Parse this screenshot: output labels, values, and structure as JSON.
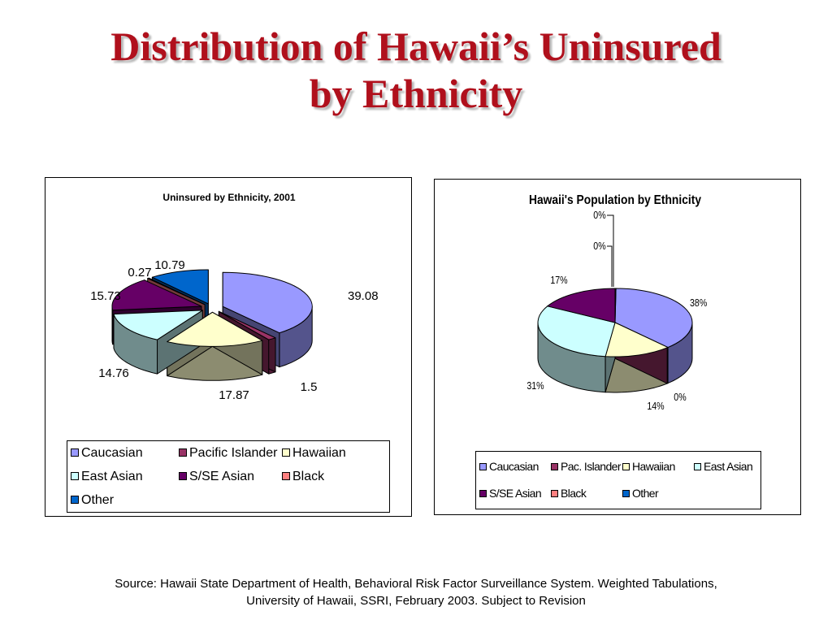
{
  "slide": {
    "title_line1": "Distribution of Hawaii’s Uninsured",
    "title_line2": "by Ethnicity",
    "source_line1": "Source: Hawaii State Department of Health, Behavioral Risk Factor Surveillance System.  Weighted Tabulations,",
    "source_line2": "University of Hawaii, SSRI, February 2003.  Subject to Revision"
  },
  "chart_data": [
    {
      "type": "pie",
      "style": "3d-exploded",
      "title": "Uninsured by Ethnicity, 2001",
      "legend_position": "bottom",
      "categories": [
        "Caucasian",
        "Pacific Islander",
        "Hawaiian",
        "East Asian",
        "S/SE Asian",
        "Black",
        "Other"
      ],
      "values": [
        39.08,
        1.5,
        17.87,
        14.76,
        15.73,
        0.27,
        10.79
      ],
      "data_labels": [
        "39.08",
        "1.5",
        "17.87",
        "14.76",
        "15.73",
        "0.27",
        "10.79"
      ],
      "colors": [
        "#9999ff",
        "#993366",
        "#ffffcc",
        "#ccffff",
        "#660066",
        "#ff8080",
        "#0066cc"
      ]
    },
    {
      "type": "pie",
      "style": "3d",
      "title": "Hawaii's Population by Ethnicity",
      "legend_position": "bottom",
      "categories": [
        "Caucasian",
        "Pac. Islander",
        "Hawaiian",
        "East Asian",
        "S/SE Asian",
        "Black",
        "Other"
      ],
      "values": [
        38,
        0,
        14,
        31,
        17,
        0,
        0
      ],
      "data_labels": [
        "38%",
        "0%",
        "14%",
        "31%",
        "17%",
        "0%",
        "0%"
      ],
      "colors": [
        "#9999ff",
        "#993366",
        "#ffffcc",
        "#ccffff",
        "#660066",
        "#ff8080",
        "#0066cc"
      ]
    }
  ]
}
